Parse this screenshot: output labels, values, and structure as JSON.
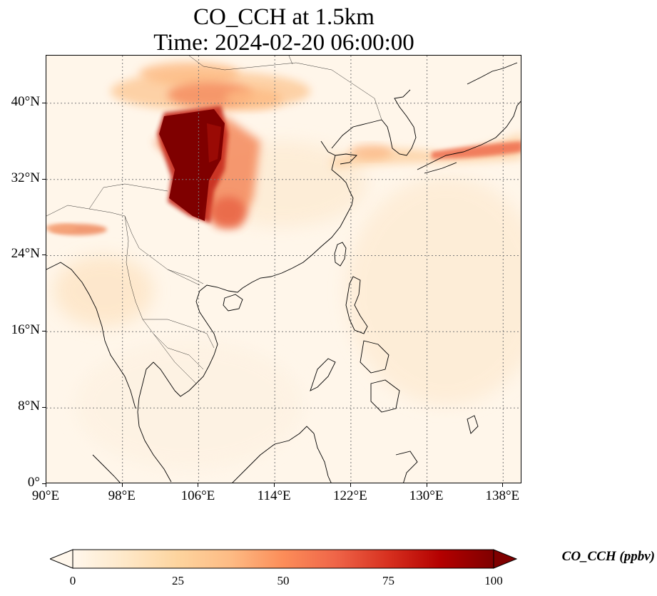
{
  "title": {
    "line1": "CO_CCH at 1.5km",
    "line2": "Time: 2024-02-20 06:00:00"
  },
  "map": {
    "variable": "CO_CCH",
    "level": "1.5km",
    "extent": {
      "lon": [
        90,
        140
      ],
      "lat": [
        0,
        45
      ]
    },
    "x_ticks": [
      "90°E",
      "98°E",
      "106°E",
      "114°E",
      "122°E",
      "130°E",
      "138°E"
    ],
    "y_ticks": [
      "0°",
      "8°N",
      "16°N",
      "24°N",
      "32°N",
      "40°N"
    ],
    "gridlines": true,
    "colormap": "OrRd"
  },
  "colorbar": {
    "label": "CO_CCH (ppbv)",
    "ticks": [
      "0",
      "25",
      "50",
      "75",
      "100"
    ],
    "range": [
      0,
      100
    ],
    "extend": "both",
    "colors": [
      "#fff7ec",
      "#fee8c8",
      "#fdd49e",
      "#fdbb84",
      "#fc8d59",
      "#ef6548",
      "#d7301f",
      "#b30000",
      "#7f0000"
    ]
  }
}
